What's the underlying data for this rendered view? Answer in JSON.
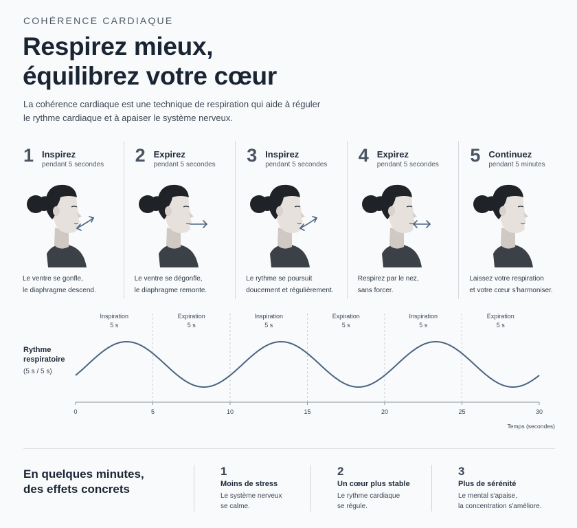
{
  "header": {
    "eyebrow": "COHÉRENCE CARDIAQUE",
    "title_line1": "Respirez mieux,",
    "title_line2": "équilibrez votre cœur",
    "lead_line1": "La cohérence cardiaque est une technique de respiration qui aide à réguler",
    "lead_line2": "le rythme cardiaque et à apaiser le système nerveux."
  },
  "steps": [
    {
      "num": "1",
      "title": "Inspirez",
      "duration": "pendant 5 secondes",
      "desc_line1": "Le ventre se gonfle,",
      "desc_line2": "le diaphragme descend.",
      "arrow": "curved-inhale-arrow-icon"
    },
    {
      "num": "2",
      "title": "Expirez",
      "duration": "pendant 5 secondes",
      "desc_line1": "Le ventre se dégonfle,",
      "desc_line2": "le diaphragme remonte.",
      "arrow": "straight-exhale-arrow-icon"
    },
    {
      "num": "3",
      "title": "Inspirez",
      "duration": "pendant 5 secondes",
      "desc_line1": "Le rythme se poursuit",
      "desc_line2": "doucement et régulièrement.",
      "arrow": "curved-inhale-arrow-icon"
    },
    {
      "num": "4",
      "title": "Expirez",
      "duration": "pendant 5 secondes",
      "desc_line1": "Respirez par le nez,",
      "desc_line2": "sans forcer.",
      "arrow": "double-arrow-icon"
    },
    {
      "num": "5",
      "title": "Continuez",
      "duration": "pendant 5 minutes",
      "desc_line1": "Laissez votre respiration",
      "desc_line2": "et votre cœur s'harmoniser.",
      "arrow": ""
    }
  ],
  "chart_data": {
    "type": "line",
    "ylabel_line1": "Rythme",
    "ylabel_line2": "respiratoire",
    "ylabel_unit": "(5 s / 5 s)",
    "xlabel": "Temps (secondes)",
    "xlim": [
      0,
      30
    ],
    "x_ticks": [
      0,
      5,
      10,
      15,
      20,
      25,
      30
    ],
    "phases": [
      {
        "label": "Inspiration",
        "duration": "5 s"
      },
      {
        "label": "Expiration",
        "duration": "5 s"
      },
      {
        "label": "Inspiration",
        "duration": "5 s"
      },
      {
        "label": "Expiration",
        "duration": "5 s"
      },
      {
        "label": "Inspiration",
        "duration": "5 s"
      },
      {
        "label": "Expiration",
        "duration": "5 s"
      }
    ],
    "series": [
      {
        "period_seconds": 10,
        "x": [
          0,
          3.3,
          8.2,
          13,
          17.8,
          22.8,
          27.7,
          30
        ],
        "y": [
          0.25,
          1,
          -0.9,
          1,
          -0.9,
          1,
          -0.9,
          0.1
        ]
      }
    ],
    "grid": "vertical dashed at phase boundaries",
    "line_color": "#4a6382"
  },
  "effects": {
    "title_line1": "En quelques minutes,",
    "title_line2": "des effets concrets",
    "items": [
      {
        "num": "1",
        "title": "Moins de stress",
        "desc_line1": "Le système nerveux",
        "desc_line2": "se calme."
      },
      {
        "num": "2",
        "title": "Un cœur plus stable",
        "desc_line1": "Le rythme cardiaque",
        "desc_line2": "se régule."
      },
      {
        "num": "3",
        "title": "Plus de sérénité",
        "desc_line1": "Le mental s'apaise,",
        "desc_line2": "la concentration s'améliore."
      }
    ]
  },
  "colors": {
    "accent": "#4a6382",
    "text": "#1e2b3a",
    "hair": "#1f2226",
    "shirt": "#3c4148"
  }
}
